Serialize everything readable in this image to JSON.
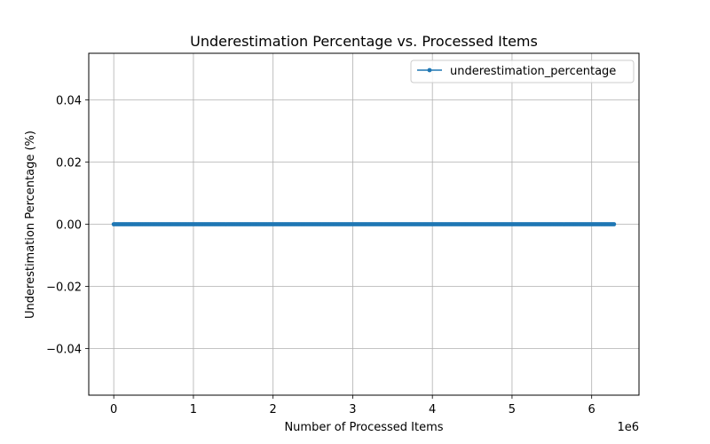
{
  "chart_data": {
    "type": "line",
    "title": "Underestimation Percentage vs. Processed Items",
    "xlabel": "Number of Processed Items",
    "ylabel": "Underestimation Percentage (%)",
    "x_offset_label": "1e6",
    "xlim": [
      -314000,
      6594000
    ],
    "ylim": [
      -0.055,
      0.055
    ],
    "x_ticks": [
      0,
      1000000,
      2000000,
      3000000,
      4000000,
      5000000,
      6000000
    ],
    "x_tick_labels": [
      "0",
      "1",
      "2",
      "3",
      "4",
      "5",
      "6"
    ],
    "y_ticks": [
      -0.04,
      -0.02,
      0.0,
      0.02,
      0.04
    ],
    "y_tick_labels": [
      "−0.04",
      "−0.02",
      "0.00",
      "0.02",
      "0.04"
    ],
    "grid": true,
    "legend_position": "top-right",
    "series": [
      {
        "name": "underestimation_percentage",
        "color": "#1f77b4",
        "marker": "point",
        "x_start": 0,
        "x_end": 6280000,
        "x_step": 20000,
        "y": 0.0
      }
    ]
  }
}
